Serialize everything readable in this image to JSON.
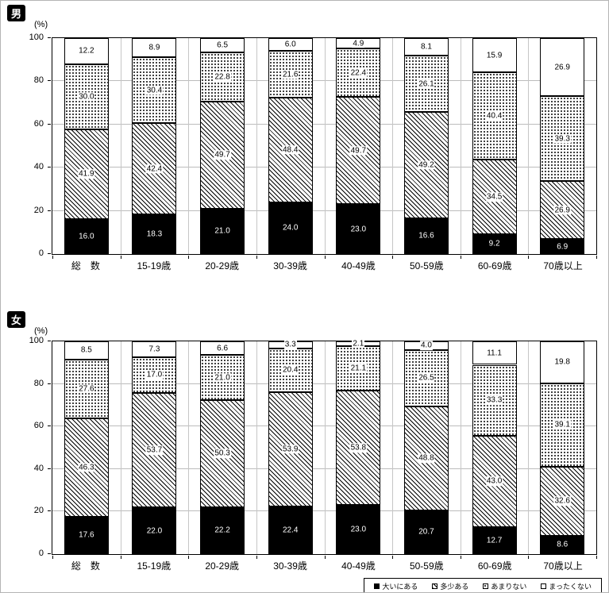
{
  "colors": {
    "ink": "#000000",
    "grid": "#bcbcbc",
    "background": "#ffffff"
  },
  "chart_data": [
    {
      "type": "bar",
      "stacked": true,
      "title_badge": "男",
      "unit": "(%)",
      "ylim": [
        0,
        100
      ],
      "yticks": [
        0,
        20,
        40,
        60,
        80,
        100
      ],
      "categories": [
        "総　数",
        "15-19歳",
        "20-29歳",
        "30-39歳",
        "40-49歳",
        "50-59歳",
        "60-69歳",
        "70歳以上"
      ],
      "series": [
        {
          "name": "大いにある",
          "pattern": "solid-black",
          "values": [
            16.0,
            18.3,
            21.0,
            24.0,
            23.0,
            16.6,
            9.2,
            6.9
          ]
        },
        {
          "name": "多少ある",
          "pattern": "diagonal-hatch",
          "values": [
            41.9,
            42.4,
            49.7,
            48.4,
            49.7,
            49.2,
            34.5,
            26.9
          ]
        },
        {
          "name": "あまりない",
          "pattern": "dots",
          "values": [
            30.0,
            30.4,
            22.8,
            21.6,
            22.4,
            26.1,
            40.4,
            39.3
          ]
        },
        {
          "name": "まったくない",
          "pattern": "white",
          "values": [
            12.2,
            8.9,
            6.5,
            6.0,
            4.9,
            8.1,
            15.9,
            26.9
          ]
        }
      ]
    },
    {
      "type": "bar",
      "stacked": true,
      "title_badge": "女",
      "unit": "(%)",
      "ylim": [
        0,
        100
      ],
      "yticks": [
        0,
        20,
        40,
        60,
        80,
        100
      ],
      "categories": [
        "総　数",
        "15-19歳",
        "20-29歳",
        "30-39歳",
        "40-49歳",
        "50-59歳",
        "60-69歳",
        "70歳以上"
      ],
      "series": [
        {
          "name": "大いにある",
          "pattern": "solid-black",
          "values": [
            17.6,
            22.0,
            22.2,
            22.4,
            23.0,
            20.7,
            12.7,
            8.6
          ]
        },
        {
          "name": "多少ある",
          "pattern": "diagonal-hatch",
          "values": [
            46.3,
            53.7,
            50.3,
            53.9,
            53.8,
            48.8,
            43.0,
            32.6
          ]
        },
        {
          "name": "あまりない",
          "pattern": "dots",
          "values": [
            27.6,
            17.0,
            21.0,
            20.4,
            21.1,
            26.5,
            33.3,
            39.1
          ]
        },
        {
          "name": "まったくない",
          "pattern": "white",
          "values": [
            8.5,
            7.3,
            6.6,
            3.3,
            2.1,
            4.0,
            11.1,
            19.8
          ]
        }
      ]
    }
  ],
  "legend": {
    "items": [
      {
        "label": "大いにある",
        "pattern": "solid-black"
      },
      {
        "label": "多少ある",
        "pattern": "diagonal-hatch"
      },
      {
        "label": "あまりない",
        "pattern": "dots"
      },
      {
        "label": "まったくない",
        "pattern": "white"
      }
    ]
  }
}
